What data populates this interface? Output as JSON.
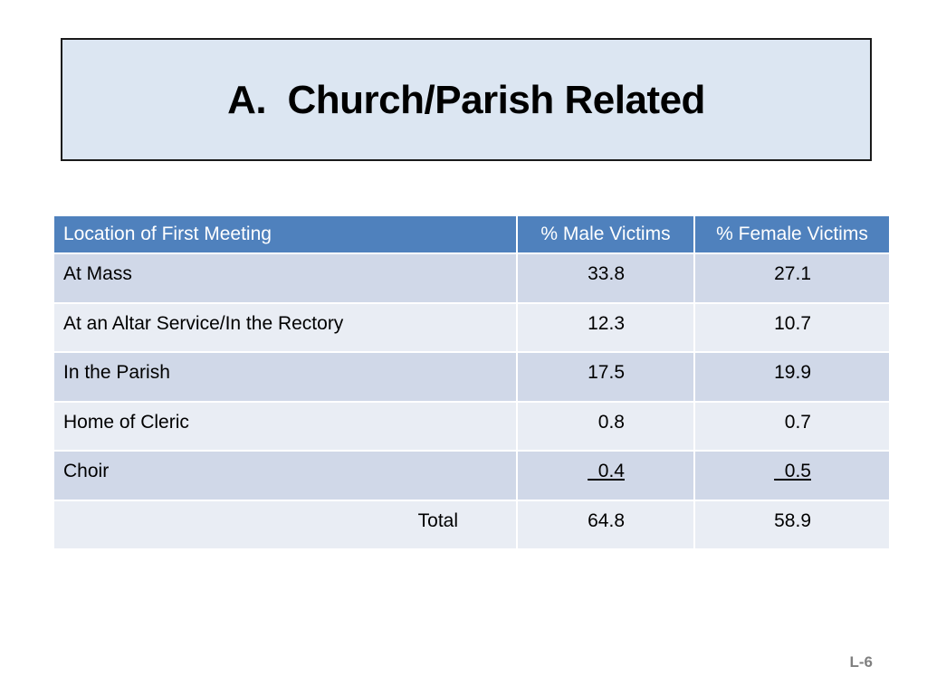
{
  "title": "A.  Church/Parish Related",
  "table": {
    "headers": [
      "Location of First Meeting",
      "% Male Victims",
      "% Female Victims"
    ],
    "rows": [
      {
        "location": "At Mass",
        "male": "33.8",
        "female": "27.1"
      },
      {
        "location": "At an Altar Service/In the Rectory",
        "male": "12.3",
        "female": "10.7"
      },
      {
        "location": "In the Parish",
        "male": "17.5",
        "female": "19.9"
      },
      {
        "location": "Home of Cleric",
        "male": "0.8",
        "female": "0.7"
      },
      {
        "location": "Choir",
        "male": "  0.4",
        "female": "  0.5"
      }
    ],
    "total": {
      "label": "Total",
      "male": "64.8",
      "female": "58.9"
    }
  },
  "page_number": "L-6",
  "colors": {
    "title_background": "#dce6f2",
    "header_background": "#4f81bd",
    "row_dark": "#d0d8e8",
    "row_light": "#e9edf4"
  }
}
